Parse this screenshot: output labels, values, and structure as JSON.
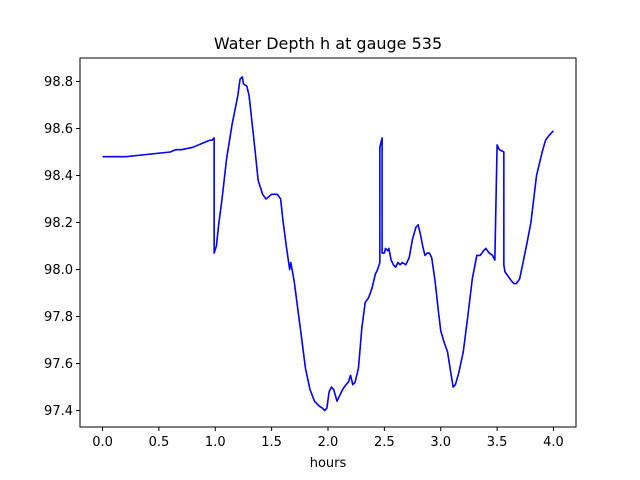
{
  "chart_data": {
    "type": "line",
    "title": "Water Depth h at gauge 535",
    "xlabel": "hours",
    "ylabel": "",
    "xlim": [
      -0.2,
      4.2
    ],
    "ylim": [
      97.33,
      98.9
    ],
    "xticks": [
      0.0,
      0.5,
      1.0,
      1.5,
      2.0,
      2.5,
      3.0,
      3.5,
      4.0
    ],
    "xtick_labels": [
      "0.0",
      "0.5",
      "1.0",
      "1.5",
      "2.0",
      "2.5",
      "3.0",
      "3.5",
      "4.0"
    ],
    "yticks": [
      97.4,
      97.6,
      97.8,
      98.0,
      98.2,
      98.4,
      98.6,
      98.8
    ],
    "ytick_labels": [
      "97.4",
      "97.6",
      "97.8",
      "98.0",
      "98.2",
      "98.4",
      "98.6",
      "98.8"
    ],
    "grid": false,
    "line_color": "#0000ff",
    "series": [
      {
        "x": [
          0.0,
          0.2,
          0.4,
          0.6,
          0.65,
          0.7,
          0.8,
          0.9,
          0.95,
          0.97,
          0.99,
          0.99,
          1.01,
          1.03,
          1.06,
          1.1,
          1.15,
          1.2,
          1.22,
          1.24,
          1.25,
          1.28,
          1.3,
          1.35,
          1.38,
          1.42,
          1.45,
          1.5,
          1.55,
          1.58,
          1.6,
          1.63,
          1.66,
          1.67,
          1.7,
          1.73,
          1.76,
          1.8,
          1.84,
          1.88,
          1.92,
          1.95,
          1.97,
          1.99,
          2.01,
          2.03,
          2.05,
          2.08,
          2.1,
          2.13,
          2.16,
          2.18,
          2.2,
          2.22,
          2.24,
          2.27,
          2.3,
          2.33,
          2.36,
          2.39,
          2.42,
          2.44,
          2.46,
          2.46,
          2.47,
          2.48,
          2.48,
          2.5,
          2.51,
          2.53,
          2.54,
          2.56,
          2.58,
          2.6,
          2.62,
          2.64,
          2.66,
          2.69,
          2.72,
          2.75,
          2.78,
          2.8,
          2.82,
          2.84,
          2.86,
          2.88,
          2.9,
          2.92,
          2.95,
          2.98,
          3.0,
          3.03,
          3.06,
          3.09,
          3.11,
          3.13,
          3.16,
          3.2,
          3.24,
          3.28,
          3.32,
          3.35,
          3.38,
          3.4,
          3.43,
          3.46,
          3.48,
          3.5,
          3.51,
          3.52,
          3.56,
          3.56,
          3.57,
          3.6,
          3.63,
          3.65,
          3.67,
          3.7,
          3.73,
          3.76,
          3.8,
          3.83,
          3.85,
          3.87,
          3.9,
          3.93,
          3.96,
          3.98,
          4.0
        ],
        "y": [
          98.48,
          98.48,
          98.49,
          98.5,
          98.51,
          98.51,
          98.52,
          98.54,
          98.55,
          98.55,
          98.56,
          98.07,
          98.1,
          98.19,
          98.3,
          98.47,
          98.62,
          98.74,
          98.81,
          98.82,
          98.79,
          98.78,
          98.74,
          98.52,
          98.38,
          98.32,
          98.3,
          98.32,
          98.32,
          98.3,
          98.21,
          98.1,
          98.0,
          98.03,
          97.95,
          97.84,
          97.73,
          97.58,
          97.49,
          97.44,
          97.42,
          97.41,
          97.4,
          97.41,
          97.48,
          97.5,
          97.49,
          97.44,
          97.46,
          97.49,
          97.51,
          97.52,
          97.55,
          97.51,
          97.52,
          97.58,
          97.75,
          97.86,
          97.88,
          97.92,
          97.98,
          98.0,
          98.03,
          98.52,
          98.54,
          98.56,
          98.07,
          98.07,
          98.09,
          98.08,
          98.09,
          98.04,
          98.02,
          98.01,
          98.03,
          98.02,
          98.03,
          98.02,
          98.05,
          98.13,
          98.18,
          98.19,
          98.15,
          98.1,
          98.06,
          98.07,
          98.07,
          98.05,
          97.95,
          97.82,
          97.74,
          97.69,
          97.65,
          97.56,
          97.5,
          97.51,
          97.56,
          97.65,
          97.8,
          97.96,
          98.06,
          98.06,
          98.08,
          98.09,
          98.07,
          98.06,
          98.04,
          98.53,
          98.52,
          98.51,
          98.5,
          98.02,
          97.99,
          97.97,
          97.95,
          97.94,
          97.94,
          97.96,
          98.03,
          98.1,
          98.2,
          98.32,
          98.4,
          98.44,
          98.5,
          98.55,
          98.57,
          98.58,
          98.59
        ]
      }
    ]
  }
}
